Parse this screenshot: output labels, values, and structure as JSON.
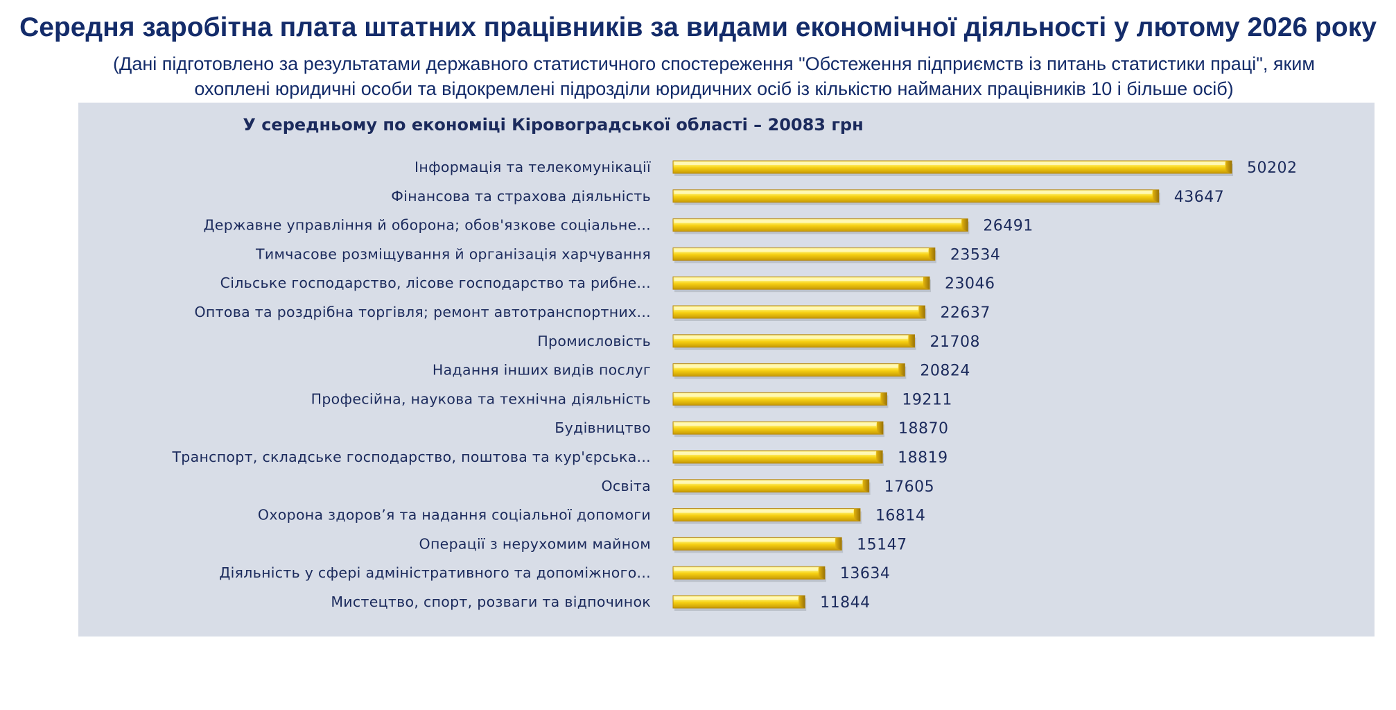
{
  "page": {
    "title": "Середня заробітна плата штатних працівників за видами економічної діяльності у лютому 2026 року",
    "subtitle": "(Дані підготовлено за результатами державного статистичного спостереження \"Обстеження підприємств із питань статистики праці\", яким охоплені юридичні особи та відокремлені підрозділи юридичних осіб із кількістю найманих працівників 10 і більше осіб)"
  },
  "colors": {
    "panel_background": "#d8dde7",
    "bar_fill_light": "#fff27a",
    "bar_fill_mid": "#f6cf12",
    "bar_fill_dark": "#c79a05",
    "bar_edge": "#9a7408",
    "text": "#1b2a5c"
  },
  "chart_data": {
    "type": "bar",
    "orientation": "horizontal",
    "title": "У середньому по економіці Кіровоградської області – 20083  грн",
    "categories": [
      "Інформація та телекомунікації",
      "Фінансова та страхова діяльність",
      "Державне управління й оборона; обов'язкове соціальне...",
      "Тимчасове розміщування й організація харчування",
      "Сільське господарство, лісове господарство та рибне...",
      "Оптова та роздрібна торгівля; ремонт автотранспортних...",
      "Промисловість",
      "Надання інших видів послуг",
      "Професійна, наукова та технічна діяльність",
      "Будівництво",
      "Транспорт, складське господарство, поштова та кур'єрська...",
      "Освіта",
      "Охорона здоров’я та надання соціальної допомоги",
      "Операції з нерухомим майном",
      "Діяльність у сфері адміністративного та допоміжного...",
      "Мистецтво, спорт, розваги та відпочинок"
    ],
    "values": [
      50202,
      43647,
      26491,
      23534,
      23046,
      22637,
      21708,
      20824,
      19211,
      18870,
      18819,
      17605,
      16814,
      15147,
      13634,
      11844
    ],
    "data_labels": [
      "50202",
      "43647",
      "26491",
      "23534",
      "23046",
      "22637",
      "21708",
      "20824",
      "19211",
      "18870",
      "18819",
      "17605",
      "16814",
      "15147",
      "13634",
      "11844"
    ],
    "xlim": [
      0,
      50202
    ],
    "grid": false,
    "legend": "none"
  }
}
